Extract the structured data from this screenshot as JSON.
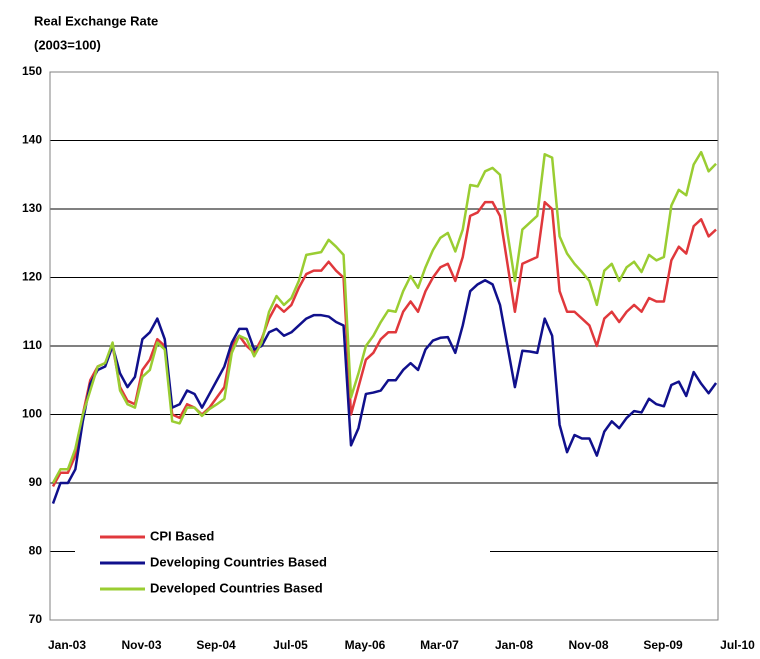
{
  "chart_data": {
    "type": "line",
    "title": "Real Exchange Rate",
    "subtitle": "(2003=100)",
    "categories": [
      "Jan-03",
      null,
      null,
      null,
      null,
      null,
      null,
      null,
      null,
      null,
      "Nov-03",
      null,
      null,
      null,
      null,
      null,
      null,
      null,
      null,
      null,
      "Sep-04",
      null,
      null,
      null,
      null,
      null,
      null,
      null,
      null,
      null,
      "Jul-05",
      null,
      null,
      null,
      null,
      null,
      null,
      null,
      null,
      null,
      "May-06",
      null,
      null,
      null,
      null,
      null,
      null,
      null,
      null,
      null,
      "Mar-07",
      null,
      null,
      null,
      null,
      null,
      null,
      null,
      null,
      null,
      "Jan-08",
      null,
      null,
      null,
      null,
      null,
      null,
      null,
      null,
      null,
      "Nov-08",
      null,
      null,
      null,
      null,
      null,
      null,
      null,
      null,
      null,
      "Sep-09",
      null,
      null,
      null,
      null,
      null,
      null,
      null,
      null,
      null,
      "Jul-10"
    ],
    "series": [
      {
        "name": "CPI Based",
        "color": "#e0383c",
        "values": [
          89.5,
          91.5,
          91.5,
          94,
          100,
          105,
          107,
          107.5,
          110,
          104,
          102,
          101.5,
          106.5,
          108,
          111,
          110,
          100,
          99.5,
          101.5,
          101,
          100,
          101,
          102.5,
          104,
          110,
          111.5,
          110,
          109,
          111,
          114,
          116,
          115,
          116,
          118.5,
          120.5,
          121,
          121,
          122.3,
          121,
          120,
          100,
          104,
          108,
          109,
          111,
          112,
          112,
          115,
          116.5,
          115,
          118,
          120,
          121.5,
          122,
          119.5,
          123,
          129,
          129.5,
          131,
          131,
          129,
          122,
          115,
          122,
          122.5,
          123,
          131,
          130,
          118,
          115,
          115,
          114,
          113,
          110,
          114,
          115,
          113.5,
          115,
          116,
          115,
          117,
          116.5,
          116.5,
          122.5,
          124.5,
          123.5,
          127.5,
          128.5,
          126,
          127,
          null
        ]
      },
      {
        "name": "Developing Countries Based",
        "color": "#10108c",
        "values": [
          87,
          90,
          90,
          92,
          99,
          104.5,
          106.5,
          107,
          110,
          106,
          104,
          105.5,
          111,
          112,
          114,
          111,
          101,
          101.5,
          103.5,
          103,
          101,
          103,
          105,
          107,
          110.5,
          112.5,
          112.5,
          109.5,
          110,
          112,
          112.5,
          111.5,
          112,
          113,
          114,
          114.5,
          114.5,
          114.3,
          113.5,
          113,
          95.5,
          98,
          103,
          103.2,
          103.5,
          105,
          105,
          106.5,
          107.5,
          106.5,
          109.5,
          110.8,
          111.2,
          111.3,
          109,
          113,
          118,
          119,
          119.6,
          119,
          116,
          110,
          104,
          109.3,
          109.2,
          109,
          114,
          111.5,
          98.5,
          94.5,
          97,
          96.5,
          96.5,
          94,
          97.5,
          99,
          98,
          99.5,
          100.5,
          100.3,
          102.3,
          101.5,
          101.2,
          104.3,
          104.8,
          102.7,
          106.2,
          104.5,
          103.1,
          104.6,
          null
        ]
      },
      {
        "name": "Developed Countries Based",
        "color": "#9acd32",
        "values": [
          90,
          92,
          92,
          95,
          100,
          103.5,
          107,
          107.5,
          110.5,
          103.5,
          101.5,
          101,
          105.5,
          106.5,
          110.5,
          109.5,
          99,
          98.7,
          101,
          101,
          99.8,
          100.8,
          101.5,
          102.3,
          109,
          111.5,
          111,
          108.5,
          110.5,
          115,
          117.3,
          116,
          117,
          119.5,
          123.3,
          123.5,
          123.7,
          125.5,
          124.5,
          123.3,
          102.5,
          106,
          110,
          111.5,
          113.5,
          115.2,
          115,
          118,
          120.2,
          118.5,
          121.5,
          124,
          125.8,
          126.5,
          123.8,
          127,
          133.5,
          133.3,
          135.5,
          136,
          135,
          126.5,
          119.5,
          127,
          128,
          129,
          138,
          137.5,
          126,
          123.5,
          122,
          120.8,
          119.5,
          116,
          121,
          122,
          119.5,
          121.5,
          122.3,
          120.8,
          123.3,
          122.5,
          123,
          130.5,
          132.8,
          132,
          136.5,
          138.3,
          135.5,
          136.6,
          null
        ]
      }
    ],
    "ylim": [
      70,
      150
    ],
    "yticks": [
      70,
      80,
      90,
      100,
      110,
      120,
      130,
      140,
      150
    ],
    "grid": true,
    "legend": "lower left"
  }
}
